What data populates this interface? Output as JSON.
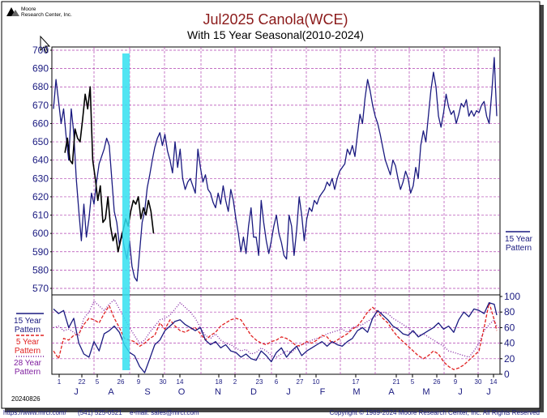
{
  "logo": {
    "line1": "Moore",
    "line2": "Research Center, Inc."
  },
  "title": "Jul2025 Canola(WCE)",
  "subtitle": "With 15 Year Seasonal(2010-2024)",
  "date_stamp": "20240826",
  "footer": {
    "website": "https://www.mrci.com/",
    "phone": "(541) 525-0521",
    "email": "e-mail: sales@mrci.com",
    "copyright": "Copyright © 1989-2024 Moore Research Center, Inc. All Rights Reserved"
  },
  "colors": {
    "price": "#1a1a80",
    "pattern15": "#1a1a80",
    "pattern5": "#e02020",
    "pattern28": "#8020a0",
    "highlight": "#33e0f0",
    "grid": "#b040b0",
    "title": "#8b1a1a"
  },
  "chart_data": [
    {
      "type": "line",
      "panel": "price",
      "ylim": [
        570,
        700
      ],
      "yticks": [
        570,
        580,
        590,
        600,
        610,
        620,
        630,
        640,
        650,
        660,
        670,
        680,
        690,
        700
      ],
      "grid": true,
      "right_legend": {
        "line1": "15 Year",
        "line2": "Pattern"
      },
      "series": [
        {
          "name": "15 Year Pattern",
          "color": "#1a1a80",
          "x": [
            1,
            3,
            5,
            7,
            9,
            11,
            13,
            15,
            17,
            19,
            21,
            23,
            25,
            27,
            29,
            31,
            33,
            35,
            37,
            39,
            41,
            43,
            45,
            47,
            49,
            51,
            53,
            55,
            57,
            59,
            61,
            63,
            65,
            67,
            69,
            71,
            73,
            75,
            77,
            79,
            81,
            83,
            85,
            87,
            89,
            91,
            93,
            95,
            97,
            99,
            101,
            103,
            105,
            107,
            109,
            111,
            113,
            115,
            117,
            119,
            121,
            123,
            125,
            127,
            129,
            131,
            133,
            135,
            137,
            139,
            141,
            143,
            145,
            147,
            149,
            151,
            153,
            155,
            157,
            159,
            161,
            163,
            165,
            167,
            169,
            171,
            173,
            175,
            177,
            179,
            181,
            183,
            185,
            187,
            189,
            191,
            193,
            195,
            197,
            199,
            201,
            203,
            205,
            207,
            209,
            211,
            213,
            215,
            217,
            219,
            221,
            223,
            225,
            227,
            229,
            231,
            233,
            235,
            237,
            239,
            241,
            243,
            245,
            247,
            249,
            251,
            253,
            255,
            257,
            259,
            261,
            263,
            265,
            267,
            269,
            271,
            273,
            275,
            277,
            279,
            281,
            283,
            285,
            287,
            289,
            291,
            293,
            295,
            297,
            299,
            301,
            303,
            305,
            307,
            309,
            311,
            313,
            315,
            317,
            319,
            321,
            323,
            325,
            327,
            329,
            331,
            333,
            335,
            337,
            339,
            341,
            343,
            345,
            347,
            349,
            351
          ],
          "values": [
            668,
            684,
            672,
            660,
            668,
            653,
            640,
            668,
            655,
            630,
            612,
            596,
            616,
            598,
            608,
            622,
            616,
            628,
            638,
            642,
            646,
            652,
            648,
            630,
            612,
            606,
            594,
            600,
            592,
            586,
            596,
            582,
            576,
            574,
            590,
            606,
            612,
            625,
            632,
            640,
            647,
            652,
            655,
            648,
            654,
            645,
            640,
            633,
            650,
            636,
            646,
            630,
            624,
            628,
            630,
            626,
            622,
            646,
            636,
            628,
            632,
            624,
            622,
            617,
            614,
            622,
            616,
            626,
            618,
            612,
            624,
            618,
            608,
            600,
            590,
            598,
            589,
            604,
            614,
            598,
            598,
            588,
            618,
            606,
            596,
            589,
            596,
            604,
            610,
            600,
            595,
            588,
            586,
            610,
            604,
            588,
            602,
            620,
            610,
            596,
            608,
            614,
            612,
            618,
            616,
            620,
            622,
            624,
            628,
            626,
            630,
            624,
            630,
            634,
            636,
            638,
            646,
            643,
            648,
            642,
            654,
            665,
            660,
            674,
            684,
            678,
            670,
            664,
            660,
            654,
            647,
            640,
            636,
            632,
            640,
            637,
            630,
            624,
            628,
            634,
            630,
            622,
            626,
            636,
            630,
            648,
            656,
            650,
            664,
            678,
            688,
            680,
            664,
            658,
            666,
            676,
            669,
            665,
            667,
            660,
            665,
            671,
            669,
            673,
            664,
            667,
            664,
            667,
            666,
            670,
            672,
            664,
            660,
            676,
            696,
            664
          ]
        },
        {
          "name": "",
          "color": "#000000",
          "x": [
            10,
            12,
            14,
            16,
            18,
            20,
            22,
            24,
            26,
            28,
            30,
            32,
            34,
            36,
            38,
            40,
            42,
            44,
            46,
            48,
            50,
            52,
            54,
            56,
            58,
            60,
            62,
            64,
            66,
            68,
            70,
            72,
            74,
            76,
            78,
            80
          ],
          "values": [
            644,
            652,
            640,
            638,
            657,
            652,
            650,
            662,
            676,
            668,
            680,
            640,
            630,
            618,
            626,
            606,
            608,
            620,
            604,
            596,
            600,
            590,
            596,
            602,
            608,
            604,
            612,
            618,
            616,
            620,
            608,
            614,
            610,
            618,
            612,
            600
          ]
        }
      ]
    },
    {
      "type": "line",
      "panel": "seasonal",
      "ylim": [
        0,
        100
      ],
      "yticks": [
        0,
        20,
        40,
        60,
        80,
        100
      ],
      "grid": true,
      "xticks": [
        "1",
        "22",
        "5",
        "26",
        "9",
        "30",
        "14",
        "18",
        "2",
        "23",
        "6",
        "27",
        "10",
        "17",
        "21",
        "5",
        "26",
        "9",
        "30",
        "14"
      ],
      "months": [
        "J",
        "A",
        "S",
        "O",
        "N",
        "D",
        "J",
        "F",
        "M",
        "A",
        "M",
        "J",
        "J"
      ],
      "series": [
        {
          "name": "15 Year Pattern",
          "color": "#1a1a80",
          "x": [
            1,
            5,
            9,
            13,
            17,
            21,
            25,
            29,
            33,
            37,
            41,
            45,
            49,
            53,
            57,
            61,
            65,
            69,
            73,
            77,
            81,
            85,
            89,
            93,
            97,
            101,
            105,
            109,
            113,
            117,
            121,
            125,
            129,
            133,
            137,
            141,
            145,
            149,
            153,
            157,
            161,
            165,
            169,
            173,
            177,
            181,
            185,
            189,
            193,
            197,
            201,
            205,
            209,
            213,
            217,
            221,
            225,
            229,
            233,
            237,
            241,
            245,
            249,
            253,
            257,
            261,
            265,
            269,
            273,
            277,
            281,
            285,
            289,
            293,
            297,
            301,
            305,
            309,
            313,
            317,
            321,
            325,
            329,
            333,
            337,
            341,
            345,
            349,
            351
          ],
          "values": [
            84,
            78,
            82,
            60,
            72,
            40,
            26,
            22,
            42,
            30,
            52,
            56,
            62,
            54,
            38,
            28,
            24,
            10,
            2,
            20,
            38,
            44,
            56,
            62,
            68,
            70,
            64,
            60,
            56,
            60,
            44,
            38,
            42,
            34,
            38,
            30,
            28,
            22,
            26,
            20,
            18,
            30,
            24,
            16,
            28,
            34,
            22,
            30,
            36,
            24,
            30,
            34,
            38,
            42,
            36,
            42,
            38,
            36,
            42,
            46,
            56,
            60,
            54,
            72,
            82,
            76,
            70,
            62,
            58,
            52,
            50,
            56,
            48,
            52,
            56,
            60,
            66,
            58,
            62,
            54,
            70,
            80,
            74,
            84,
            82,
            78,
            92,
            90,
            76
          ]
        },
        {
          "name": "5 Year Pattern",
          "color": "#e02020",
          "x": [
            1,
            5,
            9,
            13,
            17,
            21,
            25,
            29,
            33,
            37,
            41,
            45,
            49,
            53,
            57,
            61,
            65,
            69,
            73,
            77,
            81,
            85,
            89,
            93,
            97,
            101,
            105,
            109,
            113,
            117,
            121,
            125,
            129,
            133,
            137,
            141,
            145,
            149,
            153,
            157,
            161,
            165,
            169,
            173,
            177,
            181,
            185,
            189,
            193,
            197,
            201,
            205,
            209,
            213,
            217,
            221,
            225,
            229,
            233,
            237,
            241,
            245,
            249,
            253,
            257,
            261,
            265,
            269,
            273,
            277,
            281,
            285,
            289,
            293,
            297,
            301,
            305,
            309,
            313,
            317,
            321,
            325,
            329,
            333,
            337,
            341,
            345,
            349,
            351
          ],
          "values": [
            30,
            20,
            46,
            44,
            50,
            52,
            64,
            72,
            70,
            66,
            78,
            88,
            72,
            60,
            46,
            44,
            42,
            36,
            40,
            46,
            50,
            66,
            58,
            70,
            62,
            56,
            54,
            58,
            60,
            52,
            44,
            50,
            54,
            62,
            66,
            70,
            72,
            70,
            60,
            50,
            44,
            40,
            38,
            42,
            44,
            48,
            46,
            42,
            36,
            38,
            42,
            40,
            44,
            50,
            48,
            40,
            44,
            48,
            52,
            58,
            62,
            70,
            80,
            86,
            80,
            72,
            66,
            56,
            48,
            42,
            36,
            30,
            24,
            20,
            24,
            30,
            26,
            16,
            10,
            6,
            8,
            12,
            18,
            24,
            30,
            60,
            92,
            70,
            56
          ]
        },
        {
          "name": "28 Year Pattern",
          "color": "#8020a0",
          "x": [
            1,
            5,
            9,
            13,
            17,
            21,
            25,
            29,
            33,
            37,
            41,
            45,
            49,
            53,
            57,
            61,
            65,
            69,
            73,
            77,
            81,
            85,
            89,
            93,
            97,
            101,
            105,
            109,
            113,
            117,
            121,
            125,
            129,
            133,
            137,
            141,
            145,
            149,
            153,
            157,
            161,
            165,
            169,
            173,
            177,
            181,
            185,
            189,
            193,
            197,
            201,
            205,
            209,
            213,
            217,
            221,
            225,
            229,
            233,
            237,
            241,
            245,
            249,
            253,
            257,
            261,
            265,
            269,
            273,
            277,
            281,
            285,
            289,
            293,
            297,
            301,
            305,
            309,
            313,
            317,
            321,
            325,
            329,
            333,
            337,
            341,
            345,
            349,
            351
          ],
          "values": [
            60,
            62,
            56,
            58,
            54,
            50,
            72,
            80,
            94,
            88,
            82,
            90,
            96,
            84,
            72,
            60,
            50,
            40,
            44,
            54,
            62,
            70,
            72,
            76,
            84,
            92,
            86,
            80,
            72,
            60,
            50,
            46,
            52,
            44,
            40,
            38,
            34,
            30,
            32,
            26,
            28,
            34,
            30,
            24,
            22,
            26,
            30,
            28,
            34,
            38,
            40,
            44,
            46,
            48,
            52,
            54,
            56,
            58,
            54,
            60,
            62,
            64,
            68,
            72,
            76,
            80,
            78,
            72,
            68,
            64,
            60,
            54,
            50,
            52,
            48,
            44,
            40,
            36,
            30,
            28,
            26,
            24,
            22,
            30,
            40,
            56,
            64,
            70,
            62
          ]
        }
      ],
      "legend": [
        {
          "line1": "15 Year",
          "line2": "Pattern"
        },
        {
          "line1": "5 Year",
          "line2": "Pattern"
        },
        {
          "line1": "28 Year",
          "line2": "Pattern"
        }
      ]
    }
  ]
}
